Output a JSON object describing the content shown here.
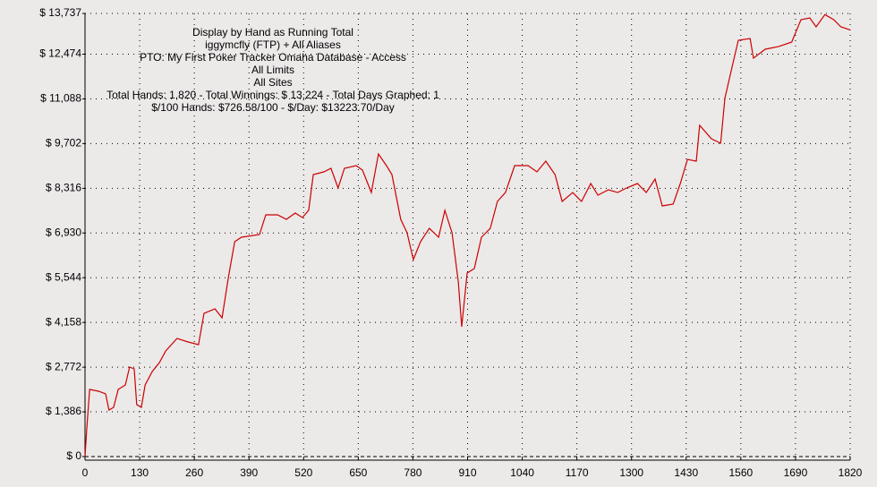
{
  "chart_data": {
    "type": "line",
    "annotations": [
      "Display by Hand as Running Total",
      "iggymcfly (FTP) + All Aliases",
      "PTO: My First Poker Tracker Omaha Database - Access",
      "All Limits",
      "All Sites",
      "Total Hands: 1,820 - Total Winnings: $ 13,224 - Total Days Graphed: 1",
      "$/100 Hands: $726.58/100 - $/Day: $13223.70/Day"
    ],
    "x": [
      0,
      4,
      11,
      32,
      49,
      57,
      68,
      79,
      96,
      106,
      117,
      123,
      134,
      143,
      160,
      177,
      192,
      219,
      245,
      270,
      283,
      309,
      326,
      341,
      356,
      372,
      415,
      430,
      458,
      479,
      500,
      517,
      532,
      543,
      568,
      585,
      602,
      617,
      645,
      660,
      681,
      698,
      717,
      730,
      751,
      766,
      781,
      798,
      819,
      841,
      856,
      873,
      888,
      896,
      909,
      926,
      943,
      964,
      981,
      1000,
      1022,
      1054,
      1075,
      1096,
      1118,
      1135,
      1160,
      1181,
      1203,
      1220,
      1245,
      1267,
      1288,
      1314,
      1335,
      1356,
      1373,
      1399,
      1416,
      1433,
      1454,
      1462,
      1490,
      1512,
      1522,
      1539,
      1554,
      1582,
      1590,
      1618,
      1650,
      1681,
      1703,
      1724,
      1739,
      1760,
      1781,
      1798,
      1820
    ],
    "series": [
      {
        "name": "Running Total",
        "color": "#cc0000",
        "values": [
          0,
          833,
          2081,
          2026,
          1943,
          1443,
          1526,
          2081,
          2220,
          2775,
          2720,
          1610,
          1526,
          2220,
          2636,
          2914,
          3275,
          3663,
          3552,
          3469,
          4440,
          4579,
          4301,
          5550,
          6660,
          6799,
          6882,
          7493,
          7493,
          7354,
          7548,
          7410,
          7632,
          8742,
          8825,
          8936,
          8325,
          8936,
          9019,
          8880,
          8186,
          9380,
          9019,
          8742,
          7354,
          6938,
          6105,
          6660,
          7076,
          6799,
          7632,
          6938,
          5411,
          4024,
          5689,
          5827,
          6799,
          7076,
          7909,
          8186,
          9019,
          9019,
          8825,
          9158,
          8742,
          7909,
          8186,
          7909,
          8464,
          8103,
          8270,
          8186,
          8325,
          8464,
          8186,
          8603,
          7770,
          7826,
          8464,
          9213,
          9158,
          10268,
          9852,
          9713,
          11101,
          12072,
          12905,
          12960,
          12350,
          12627,
          12711,
          12849,
          13543,
          13598,
          13321,
          13700,
          13543,
          13321,
          13224
        ]
      }
    ],
    "xlim": [
      0,
      1820
    ],
    "xticks": [
      0,
      130,
      260,
      390,
      520,
      650,
      780,
      910,
      1040,
      1170,
      1300,
      1430,
      1560,
      1690,
      1820
    ],
    "ylim": [
      0,
      13737
    ],
    "yticks": [
      {
        "value": 0,
        "label": "$ 0"
      },
      {
        "value": 1386,
        "label": "$ 1,386"
      },
      {
        "value": 2772,
        "label": "$ 2,772"
      },
      {
        "value": 4158,
        "label": "$ 4,158"
      },
      {
        "value": 5544,
        "label": "$ 5,544"
      },
      {
        "value": 6930,
        "label": "$ 6,930"
      },
      {
        "value": 8316,
        "label": "$ 8,316"
      },
      {
        "value": 9702,
        "label": "$ 9,702"
      },
      {
        "value": 11088,
        "label": "$ 11,088"
      },
      {
        "value": 12474,
        "label": "$ 12,474"
      },
      {
        "value": 13737,
        "label": "$ 13,737"
      }
    ],
    "grid": true
  }
}
